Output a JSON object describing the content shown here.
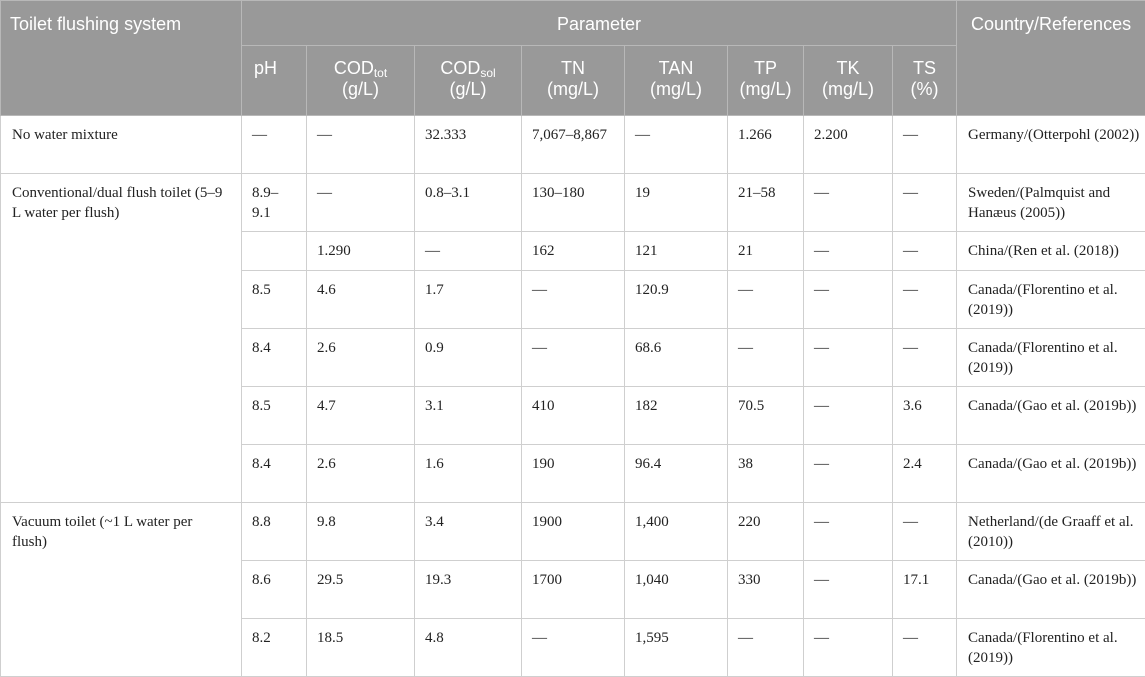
{
  "table": {
    "header": {
      "system": "Toilet flushing system",
      "parameter": "Parameter",
      "country": "Country/References",
      "params": [
        {
          "name": "pH",
          "sub": "",
          "unit": ""
        },
        {
          "name": "COD",
          "sub": "tot",
          "unit": "(g/L)"
        },
        {
          "name": "COD",
          "sub": "sol",
          "unit": "(g/L)"
        },
        {
          "name": "TN",
          "sub": "",
          "unit": "(mg/L)"
        },
        {
          "name": "TAN",
          "sub": "",
          "unit": "(mg/L)"
        },
        {
          "name": "TP",
          "sub": "",
          "unit": "(mg/L)"
        },
        {
          "name": "TK",
          "sub": "",
          "unit": "(mg/L)"
        },
        {
          "name": "TS",
          "sub": "",
          "unit": "(%)"
        }
      ]
    },
    "groups": [
      {
        "label": "No water mixture"
      },
      {
        "label": "Conventional/dual flush toilet (5–9 L water per flush)"
      },
      {
        "label": "Vacuum toilet (~1 L water per flush)"
      }
    ],
    "rows": [
      {
        "ph": "—",
        "cod_tot": "—",
        "cod_sol": "32.333",
        "tn": "7,067–8,867",
        "tan": "—",
        "tp": "1.266",
        "tk": "2.200",
        "ts": "—",
        "ref": "Germany/(Otterpohl (2002))"
      },
      {
        "ph": "8.9–9.1",
        "cod_tot": "—",
        "cod_sol": "0.8–3.1",
        "tn": "130–180",
        "tan": "19",
        "tp": "21–58",
        "tk": "—",
        "ts": "—",
        "ref": "Sweden/(Palmquist and Hanæus (2005))"
      },
      {
        "ph": "",
        "cod_tot": "1.290",
        "cod_sol": "—",
        "tn": "162",
        "tan": "121",
        "tp": "21",
        "tk": "—",
        "ts": "—",
        "ref": "China/(Ren et al. (2018))"
      },
      {
        "ph": "8.5",
        "cod_tot": "4.6",
        "cod_sol": "1.7",
        "tn": "—",
        "tan": "120.9",
        "tp": "—",
        "tk": "—",
        "ts": "—",
        "ref": "Canada/(Florentino et al. (2019))"
      },
      {
        "ph": "8.4",
        "cod_tot": "2.6",
        "cod_sol": "0.9",
        "tn": "—",
        "tan": "68.6",
        "tp": "—",
        "tk": "—",
        "ts": "—",
        "ref": "Canada/(Florentino et al. (2019))"
      },
      {
        "ph": "8.5",
        "cod_tot": "4.7",
        "cod_sol": "3.1",
        "tn": "410",
        "tan": "182",
        "tp": "70.5",
        "tk": "—",
        "ts": "3.6",
        "ref": "Canada/(Gao et al. (2019b))"
      },
      {
        "ph": "8.4",
        "cod_tot": "2.6",
        "cod_sol": "1.6",
        "tn": "190",
        "tan": "96.4",
        "tp": "38",
        "tk": "—",
        "ts": "2.4",
        "ref": "Canada/(Gao et al. (2019b))"
      },
      {
        "ph": "8.8",
        "cod_tot": "9.8",
        "cod_sol": "3.4",
        "tn": "1900",
        "tan": "1,400",
        "tp": "220",
        "tk": "—",
        "ts": "—",
        "ref": "Netherland/(de Graaff et al. (2010))"
      },
      {
        "ph": "8.6",
        "cod_tot": "29.5",
        "cod_sol": "19.3",
        "tn": "1700",
        "tan": "1,040",
        "tp": "330",
        "tk": "—",
        "ts": "17.1",
        "ref": "Canada/(Gao et al. (2019b))"
      },
      {
        "ph": "8.2",
        "cod_tot": "18.5",
        "cod_sol": "4.8",
        "tn": "—",
        "tan": "1,595",
        "tp": "—",
        "tk": "—",
        "ts": "—",
        "ref": "Canada/(Florentino et al. (2019))"
      }
    ]
  }
}
